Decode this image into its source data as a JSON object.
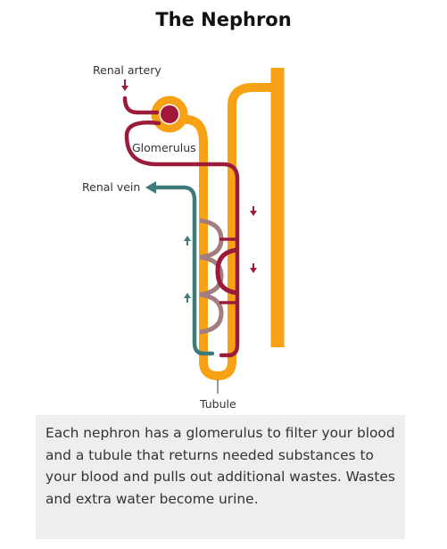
{
  "title": "The Nephron",
  "labels": {
    "renal_artery": "Renal artery",
    "glomerulus": "Glomerulus",
    "renal_vein": "Renal vein",
    "tubule": "Tubule"
  },
  "caption": "Each nephron has a glomerulus to filter your blood and a tubule that returns needed substances to your blood and pulls out additional wastes. Wastes and extra water become urine.",
  "colors": {
    "tubule": "#f7a115",
    "artery": "#9b1c3a",
    "vein": "#3e7a7a",
    "glomerulus": "#a3173a",
    "capillary": "#a47e7e"
  }
}
